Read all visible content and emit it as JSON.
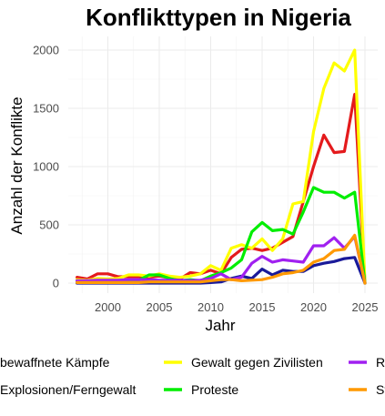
{
  "chart_data": {
    "type": "line",
    "title": "Konflikttypen in Nigeria",
    "xlabel": "Jahr",
    "ylabel": "Anzahl der Konflikte",
    "xlim": [
      1997,
      2025
    ],
    "ylim": [
      0,
      2100
    ],
    "xticks": [
      2000,
      2005,
      2010,
      2015,
      2020,
      2025
    ],
    "yticks": [
      0,
      500,
      1000,
      1500,
      2000
    ],
    "grid": true,
    "legend_position": "bottom",
    "x": [
      1997,
      1998,
      1999,
      2000,
      2001,
      2002,
      2003,
      2004,
      2005,
      2006,
      2007,
      2008,
      2009,
      2010,
      2011,
      2012,
      2013,
      2014,
      2015,
      2016,
      2017,
      2018,
      2019,
      2020,
      2021,
      2022,
      2023,
      2024,
      2025
    ],
    "series": [
      {
        "name": "bewaffnete Kämpfe",
        "color": "#e41a1c",
        "values": [
          50,
          35,
          80,
          80,
          55,
          55,
          55,
          50,
          60,
          45,
          35,
          90,
          80,
          110,
          80,
          220,
          290,
          300,
          280,
          300,
          350,
          400,
          700,
          1000,
          1270,
          1120,
          1130,
          1620,
          0
        ]
      },
      {
        "name": "Explosionen/Ferngewalt",
        "color": "#1a1a99",
        "values": [
          0,
          0,
          0,
          0,
          0,
          0,
          0,
          0,
          0,
          0,
          0,
          0,
          0,
          5,
          10,
          40,
          60,
          40,
          120,
          70,
          110,
          100,
          100,
          150,
          170,
          185,
          210,
          220,
          0
        ]
      },
      {
        "name": "Gewalt gegen Zivilisten",
        "color": "#ffff00",
        "values": [
          30,
          25,
          40,
          35,
          40,
          70,
          70,
          60,
          80,
          60,
          50,
          60,
          80,
          150,
          110,
          300,
          330,
          300,
          380,
          280,
          380,
          680,
          700,
          1300,
          1670,
          1890,
          1820,
          2000,
          0
        ]
      },
      {
        "name": "Proteste",
        "color": "#00ee00",
        "values": [
          10,
          10,
          10,
          15,
          15,
          20,
          25,
          70,
          70,
          40,
          20,
          30,
          20,
          60,
          90,
          130,
          200,
          440,
          520,
          450,
          460,
          420,
          610,
          820,
          780,
          780,
          730,
          780,
          0
        ]
      },
      {
        "name": "Randalieren",
        "color": "#a020f0",
        "values": [
          20,
          20,
          25,
          25,
          25,
          30,
          30,
          30,
          25,
          25,
          25,
          20,
          25,
          40,
          80,
          30,
          50,
          170,
          230,
          180,
          200,
          190,
          180,
          320,
          320,
          390,
          300,
          400,
          0
        ]
      },
      {
        "name": "Strategische Entwicklungen",
        "color": "#ff9900",
        "values": [
          5,
          5,
          5,
          5,
          5,
          5,
          5,
          10,
          10,
          10,
          10,
          10,
          10,
          20,
          30,
          30,
          20,
          25,
          30,
          50,
          80,
          90,
          110,
          180,
          210,
          280,
          290,
          410,
          0
        ]
      }
    ]
  }
}
